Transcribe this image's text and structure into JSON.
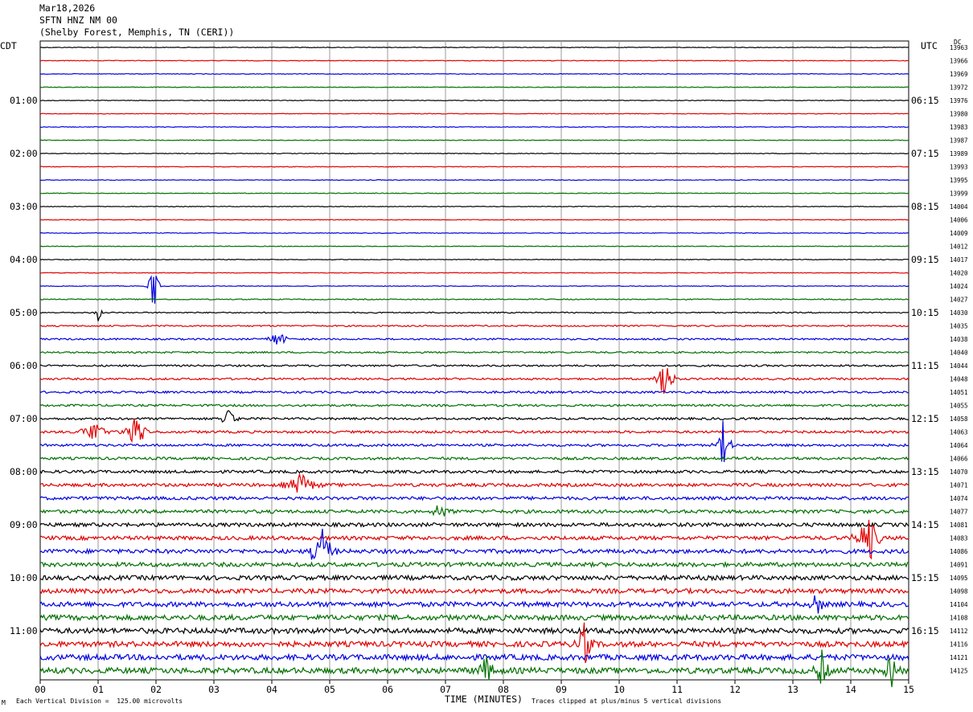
{
  "header": {
    "date": "Mar18,2026",
    "station": "SFTN HNZ NM 00",
    "location": "(Shelby Forest, Memphis, TN (CERI))"
  },
  "left_tz": "CDT",
  "right_tz": "UTC",
  "dc_label": "DC",
  "footer": {
    "xlabel": "TIME (MINUTES)",
    "scale_note": "Each Vertical Division =  125.00 microvolts",
    "clip_note": "Traces clipped at plus/minus 5 vertical divisions",
    "corner_mark": "M"
  },
  "chart_data": {
    "type": "line",
    "title": "SFTN HNZ NM 00",
    "xlabel": "TIME (MINUTES)",
    "xlim": [
      0,
      15
    ],
    "x_ticks": [
      "00",
      "01",
      "02",
      "03",
      "04",
      "05",
      "06",
      "07",
      "08",
      "09",
      "10",
      "11",
      "12",
      "13",
      "14",
      "15"
    ],
    "grid": true,
    "trace_colors": [
      "#000000",
      "#e00000",
      "#0000e0",
      "#007000"
    ],
    "left_time_labels": [
      "01:00",
      "02:00",
      "03:00",
      "04:00",
      "05:00",
      "06:00",
      "07:00",
      "08:00",
      "09:00",
      "10:00",
      "11:00"
    ],
    "right_time_labels": [
      "06:15",
      "07:15",
      "08:15",
      "09:15",
      "10:15",
      "11:15",
      "12:15",
      "13:15",
      "14:15",
      "15:15",
      "16:15"
    ],
    "dc_offsets": [
      "13963",
      "13966",
      "13969",
      "13972",
      "13976",
      "13980",
      "13983",
      "13987",
      "13989",
      "13993",
      "13995",
      "13999",
      "14004",
      "14006",
      "14009",
      "14012",
      "14017",
      "14020",
      "14024",
      "14027",
      "14030",
      "14035",
      "14038",
      "14040",
      "14044",
      "14048",
      "14051",
      "14055",
      "14058",
      "14063",
      "14064",
      "14066",
      "14070",
      "14071",
      "14074",
      "14077",
      "14081",
      "14083",
      "14086",
      "14091",
      "14095",
      "14098",
      "14104",
      "14108",
      "14112",
      "14116",
      "14121",
      "14125"
    ],
    "noise_levels": [
      0.4,
      0.4,
      0.4,
      0.4,
      0.4,
      0.4,
      0.4,
      0.4,
      0.4,
      0.4,
      0.4,
      0.4,
      0.4,
      0.4,
      0.4,
      0.4,
      0.4,
      0.4,
      0.4,
      0.6,
      0.7,
      0.9,
      1.0,
      1.0,
      1.1,
      1.2,
      1.3,
      1.3,
      1.4,
      1.5,
      1.5,
      1.6,
      1.8,
      2.0,
      2.0,
      2.1,
      2.3,
      2.4,
      2.6,
      2.6,
      2.8,
      2.8,
      3.0,
      3.2,
      3.3,
      3.3,
      3.4,
      3.6
    ],
    "events": [
      {
        "trace": 18,
        "minute": 1.95,
        "amplitude": 5,
        "width": 0.15
      },
      {
        "trace": 20,
        "minute": 1.0,
        "amplitude": 2,
        "width": 0.1
      },
      {
        "trace": 22,
        "minute": 4.1,
        "amplitude": 1.5,
        "width": 0.3
      },
      {
        "trace": 25,
        "minute": 10.8,
        "amplitude": 5,
        "width": 0.2
      },
      {
        "trace": 28,
        "minute": 3.25,
        "amplitude": 2,
        "width": 0.2
      },
      {
        "trace": 29,
        "minute": 0.95,
        "amplitude": 2,
        "width": 0.4
      },
      {
        "trace": 29,
        "minute": 1.65,
        "amplitude": 3,
        "width": 0.3
      },
      {
        "trace": 30,
        "minute": 11.8,
        "amplitude": 4,
        "width": 0.2
      },
      {
        "trace": 33,
        "minute": 4.5,
        "amplitude": 2,
        "width": 0.4
      },
      {
        "trace": 35,
        "minute": 6.9,
        "amplitude": 1.5,
        "width": 0.3
      },
      {
        "trace": 37,
        "minute": 14.3,
        "amplitude": 5,
        "width": 0.3
      },
      {
        "trace": 38,
        "minute": 4.85,
        "amplitude": 5,
        "width": 0.3
      },
      {
        "trace": 42,
        "minute": 13.4,
        "amplitude": 2,
        "width": 0.2
      },
      {
        "trace": 47,
        "minute": 7.7,
        "amplitude": 3,
        "width": 0.2
      },
      {
        "trace": 47,
        "minute": 13.5,
        "amplitude": 3,
        "width": 0.2
      },
      {
        "trace": 47,
        "minute": 14.7,
        "amplitude": 4,
        "width": 0.2
      },
      {
        "trace": 45,
        "minute": 9.4,
        "amplitude": 4,
        "width": 0.2
      }
    ]
  }
}
